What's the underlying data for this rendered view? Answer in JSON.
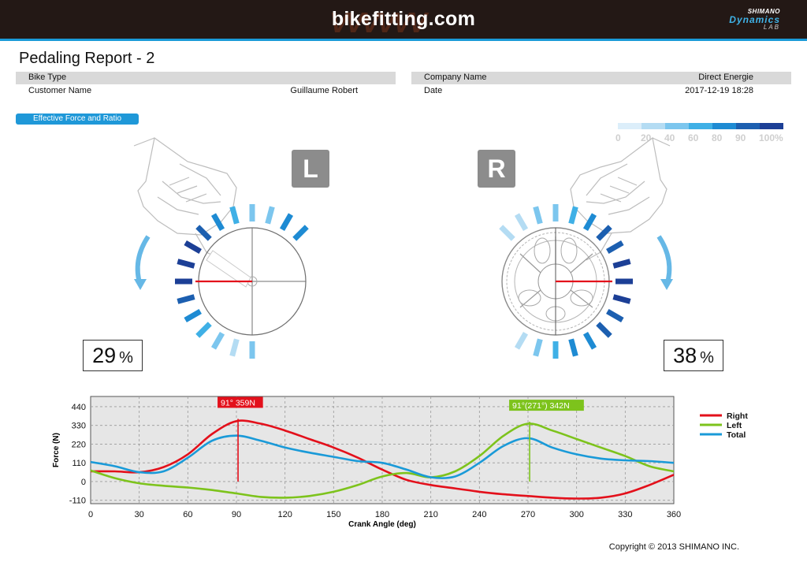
{
  "header": {
    "brand": "bikefitting.com",
    "brand_watermark": "VVVVVV",
    "logo_line1": "SHIMANO",
    "logo_line2": "Dynamics",
    "logo_line3": "LAB"
  },
  "report": {
    "title": "Pedaling Report - 2",
    "bike_type_label": "Bike Type",
    "bike_type_value": "",
    "company_label": "Company Name",
    "company_value": "Direct Energie",
    "customer_label": "Customer Name",
    "customer_value": "Guillaume Robert",
    "date_label": "Date",
    "date_value": "2017-12-19 18:28"
  },
  "section": {
    "label": "Effective Force and Ratio"
  },
  "scale": {
    "colors": [
      "#dceefa",
      "#b4dcf3",
      "#7cc6ee",
      "#3fb0e6",
      "#1e8bd3",
      "#1c5fb0",
      "#1c3f96"
    ],
    "labels": [
      "0",
      "20",
      "40",
      "60",
      "80",
      "90",
      "100%"
    ]
  },
  "left": {
    "badge": "L",
    "percent": "29",
    "unit": "%"
  },
  "right": {
    "badge": "R",
    "percent": "38",
    "unit": "%"
  },
  "chart_data": {
    "type": "line",
    "xlabel": "Crank Angle (deg)",
    "ylabel": "Force (N)",
    "xlim": [
      0,
      360
    ],
    "ylim": [
      -130,
      500
    ],
    "x_ticks": [
      0,
      30,
      60,
      90,
      120,
      150,
      180,
      210,
      240,
      270,
      300,
      330,
      360
    ],
    "y_ticks": [
      440,
      330,
      220,
      110,
      0,
      -110
    ],
    "grid": true,
    "legend_position": "right",
    "x": [
      0,
      15,
      30,
      45,
      60,
      75,
      90,
      105,
      120,
      135,
      150,
      165,
      180,
      195,
      210,
      225,
      240,
      255,
      270,
      285,
      300,
      315,
      330,
      345,
      360
    ],
    "series": [
      {
        "name": "Right",
        "color": "#e3101b",
        "values": [
          60,
          60,
          55,
          85,
          160,
          280,
          355,
          340,
          300,
          250,
          200,
          140,
          70,
          10,
          -20,
          -40,
          -60,
          -75,
          -85,
          -95,
          -100,
          -95,
          -70,
          -20,
          40
        ]
      },
      {
        "name": "Left",
        "color": "#7dc31c",
        "values": [
          65,
          20,
          -10,
          -25,
          -35,
          -50,
          -70,
          -90,
          -95,
          -85,
          -60,
          -20,
          30,
          50,
          25,
          60,
          150,
          270,
          340,
          300,
          250,
          200,
          150,
          90,
          60
        ]
      },
      {
        "name": "Total",
        "color": "#1a9ad8",
        "values": [
          115,
          90,
          55,
          60,
          140,
          240,
          270,
          240,
          200,
          170,
          145,
          120,
          110,
          70,
          25,
          30,
          110,
          210,
          255,
          200,
          160,
          135,
          125,
          120,
          110
        ]
      }
    ],
    "annotations": [
      {
        "text": "91° 359N",
        "x": 91,
        "y": 359,
        "color": "#e3101b"
      },
      {
        "text": "91°(271°) 342N",
        "x": 271,
        "y": 342,
        "color": "#7dc31c"
      }
    ]
  },
  "footer": {
    "copyright": "Copyright © 2013 SHIMANO INC."
  }
}
